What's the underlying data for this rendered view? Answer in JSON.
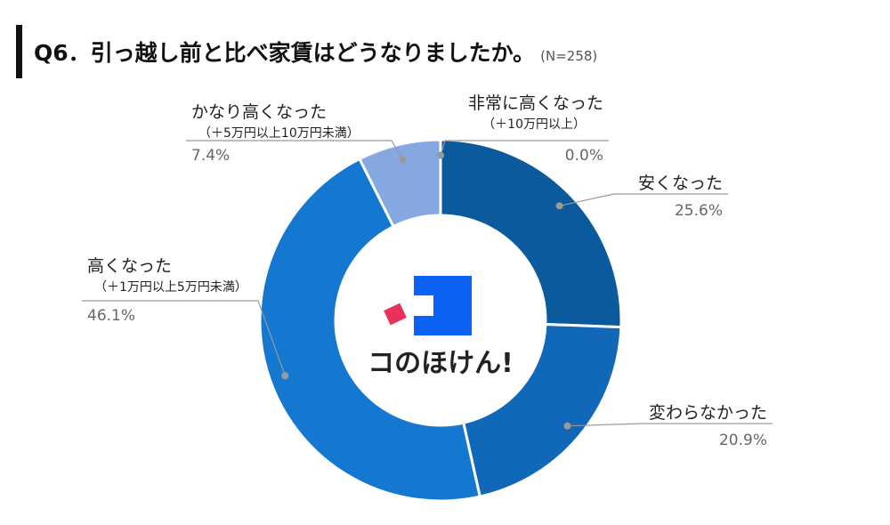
{
  "header": {
    "title": "Q6．引っ越し前と比べ家賃はどうなりましたか。",
    "sample_size": "(N=258)"
  },
  "logo": {
    "text": "コのほけん!"
  },
  "colors": {
    "slice_0": "#0b5a9e",
    "slice_1": "#1167b8",
    "slice_2": "#1478d0",
    "slice_3": "#86a8e0",
    "slice_4": "#7fa0d8",
    "logo_blue": "#0b63f6",
    "logo_red": "#e8325a"
  },
  "chart_data": {
    "type": "pie",
    "subtype": "donut",
    "order": "clockwise-from-top",
    "slices": [
      {
        "label": "安くなった",
        "sublabel": "",
        "value": 25.6,
        "value_text": "25.6%"
      },
      {
        "label": "変わらなかった",
        "sublabel": "",
        "value": 20.9,
        "value_text": "20.9%"
      },
      {
        "label": "高くなった",
        "sublabel": "（＋1万円以上5万円未満）",
        "value": 46.1,
        "value_text": "46.1%"
      },
      {
        "label": "かなり高くなった",
        "sublabel": "（＋5万円以上10万円未満）",
        "value": 7.4,
        "value_text": "7.4%"
      },
      {
        "label": "非常に高くなった",
        "sublabel": "（＋10万円以上）",
        "value": 0.0,
        "value_text": "0.0%"
      }
    ]
  }
}
